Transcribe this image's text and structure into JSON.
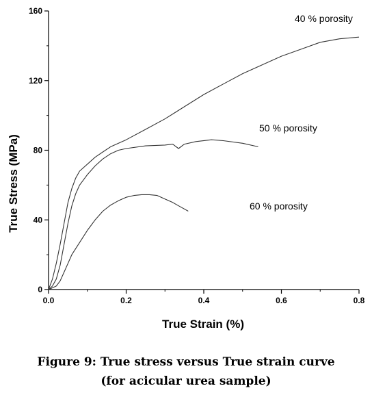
{
  "chart_data": {
    "type": "line",
    "xlabel": "True Strain (%)",
    "ylabel": "True Stress (MPa)",
    "xlim": [
      0,
      0.8
    ],
    "ylim": [
      0,
      160
    ],
    "x_ticks": [
      "0.0",
      "0.2",
      "0.4",
      "0.6",
      "0.8"
    ],
    "y_ticks": [
      "0",
      "40",
      "80",
      "120",
      "160"
    ],
    "grid": false,
    "series": [
      {
        "name": "40 % porosity",
        "x": [
          0,
          0.01,
          0.02,
          0.03,
          0.04,
          0.05,
          0.06,
          0.07,
          0.08,
          0.1,
          0.12,
          0.14,
          0.16,
          0.2,
          0.25,
          0.3,
          0.35,
          0.4,
          0.45,
          0.5,
          0.55,
          0.6,
          0.65,
          0.7,
          0.75,
          0.8
        ],
        "y": [
          0,
          6,
          15,
          26,
          38,
          50,
          58,
          64,
          68,
          72,
          76,
          79,
          82,
          86,
          92,
          98,
          105,
          112,
          118,
          124,
          129,
          134,
          138,
          142,
          144,
          145
        ]
      },
      {
        "name": "50 % porosity",
        "x": [
          0,
          0.01,
          0.02,
          0.03,
          0.04,
          0.05,
          0.06,
          0.07,
          0.08,
          0.1,
          0.12,
          0.14,
          0.16,
          0.18,
          0.2,
          0.25,
          0.3,
          0.32,
          0.335,
          0.35,
          0.38,
          0.42,
          0.45,
          0.5,
          0.54
        ],
        "y": [
          0,
          2,
          6,
          14,
          26,
          38,
          48,
          55,
          60,
          66,
          71,
          75,
          78,
          80,
          81,
          82.5,
          83,
          83.5,
          81,
          83.5,
          85,
          86,
          85.5,
          84,
          82
        ]
      },
      {
        "name": "60 % porosity",
        "x": [
          0,
          0.01,
          0.02,
          0.03,
          0.04,
          0.05,
          0.06,
          0.08,
          0.1,
          0.12,
          0.14,
          0.16,
          0.18,
          0.2,
          0.22,
          0.24,
          0.26,
          0.28,
          0.3,
          0.32,
          0.34,
          0.36
        ],
        "y": [
          0,
          1,
          2,
          5,
          10,
          15,
          20,
          27,
          34,
          40,
          45,
          48.5,
          51,
          53,
          54,
          54.5,
          54.5,
          54,
          52,
          50,
          47.5,
          45
        ]
      }
    ]
  },
  "caption": {
    "line1": "Figure 9: True stress versus True strain curve",
    "line2": "(for acicular urea sample)"
  }
}
